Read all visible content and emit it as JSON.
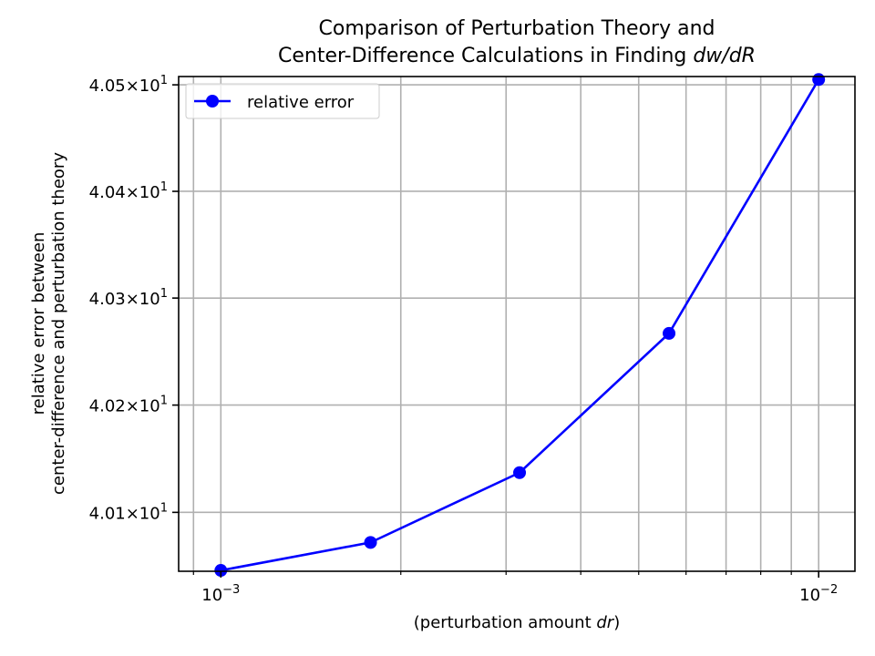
{
  "chart_data": {
    "type": "line",
    "title_line1": "Comparison of Perturbation Theory and",
    "title_line2_prefix": "Center-Difference Calculations in Finding ",
    "title_line2_math": "dw/dR",
    "xlabel_prefix": "(perturbation amount ",
    "xlabel_math": "dr",
    "xlabel_suffix": ")",
    "ylabel_line1": "relative error between",
    "ylabel_line2": "center-difference and perturbation theory",
    "x_scale": "log",
    "y_scale": "log",
    "xlim": [
      0.00085,
      0.0115
    ],
    "ylim": [
      40.0452,
      40.5078
    ],
    "x_ticks": [
      {
        "value": 0.001,
        "base": "10",
        "exp": "−3"
      },
      {
        "value": 0.01,
        "base": "10",
        "exp": "−2"
      }
    ],
    "y_ticks": [
      {
        "value": 40.1,
        "label": "4.01×10",
        "exp": "1"
      },
      {
        "value": 40.2,
        "label": "4.02×10",
        "exp": "1"
      },
      {
        "value": 40.3,
        "label": "4.03×10",
        "exp": "1"
      },
      {
        "value": 40.4,
        "label": "4.04×10",
        "exp": "1"
      },
      {
        "value": 40.5,
        "label": "4.05×10",
        "exp": "1"
      }
    ],
    "grid": true,
    "legend_position": "upper-left",
    "series": [
      {
        "name": "relative error",
        "color": "#0000ff",
        "marker": "circle",
        "x": [
          0.001,
          0.00178,
          0.00316,
          0.00562,
          0.01
        ],
        "y": [
          40.046,
          40.072,
          40.137,
          40.267,
          40.505
        ]
      }
    ]
  }
}
